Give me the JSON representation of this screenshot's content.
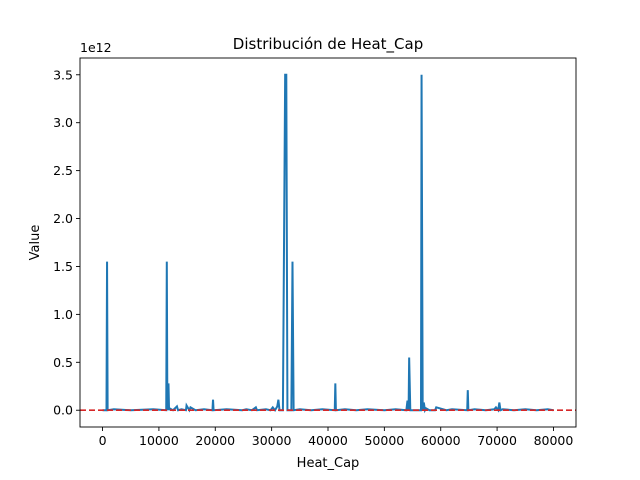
{
  "chart_data": {
    "type": "line",
    "title": "Distribución de Heat_Cap",
    "xlabel": "Heat_Cap",
    "ylabel": "Value",
    "offset_text": "1e12",
    "xlim": [
      -4000,
      84000
    ],
    "ylim": [
      -0.175,
      3.675
    ],
    "y_scale_factor": 1000000000000.0,
    "x_ticks": [
      0,
      10000,
      20000,
      30000,
      40000,
      50000,
      60000,
      70000,
      80000
    ],
    "x_tick_labels": [
      "0",
      "10000",
      "20000",
      "30000",
      "40000",
      "50000",
      "60000",
      "70000",
      "80000"
    ],
    "y_ticks": [
      0.0,
      0.5,
      1.0,
      1.5,
      2.0,
      2.5,
      3.0,
      3.5
    ],
    "y_tick_labels": [
      "0.0",
      "0.5",
      "1.0",
      "1.5",
      "2.0",
      "2.5",
      "3.0",
      "3.5"
    ],
    "grid": false,
    "reference_line": {
      "y": 0,
      "color": "#d62728",
      "style": "dashed"
    },
    "series": [
      {
        "color": "#1f77b4",
        "x": [
          0,
          700,
          800,
          900,
          2000,
          5000,
          9000,
          11300,
          11400,
          11500,
          11700,
          11800,
          11900,
          12500,
          13200,
          13400,
          14000,
          14800,
          14900,
          15400,
          15600,
          16500,
          18000,
          19500,
          19600,
          19700,
          22000,
          24800,
          25500,
          26500,
          27200,
          27400,
          29000,
          29800,
          30200,
          30600,
          31000,
          31200,
          31400,
          32000,
          32400,
          32600,
          32800,
          33500,
          33700,
          33900,
          35000,
          37000,
          39000,
          41200,
          41300,
          41400,
          43000,
          45000,
          47000,
          50000,
          52000,
          53900,
          54100,
          54300,
          54400,
          54600,
          56500,
          56600,
          56800,
          57000,
          57200,
          57400,
          58000,
          59000,
          59200,
          61000,
          62000,
          64700,
          64800,
          64900,
          66000,
          68000,
          69500,
          69800,
          70200,
          70400,
          70600,
          71000,
          73000,
          75000,
          77000,
          79000,
          80000
        ],
        "y": [
          0.0,
          0.0,
          1.55,
          0.0,
          0.01,
          0.0,
          0.01,
          0.0,
          1.55,
          0.0,
          0.28,
          0.0,
          0.02,
          0.0,
          0.04,
          0.0,
          0.01,
          0.0,
          0.05,
          0.0,
          0.03,
          0.0,
          0.01,
          0.0,
          0.11,
          0.0,
          0.01,
          0.0,
          0.01,
          0.0,
          0.03,
          0.0,
          0.01,
          0.0,
          0.03,
          0.0,
          0.04,
          0.11,
          0.0,
          0.0,
          3.5,
          3.5,
          0.0,
          0.0,
          1.55,
          0.0,
          0.01,
          0.0,
          0.01,
          0.0,
          0.28,
          0.0,
          0.01,
          0.0,
          0.01,
          0.0,
          0.01,
          0.0,
          0.1,
          0.0,
          0.55,
          0.0,
          0.0,
          3.5,
          0.0,
          0.08,
          0.0,
          0.02,
          0.0,
          0.0,
          0.03,
          0.0,
          0.01,
          0.0,
          0.21,
          0.0,
          0.01,
          0.0,
          0.01,
          0.03,
          0.0,
          0.08,
          0.0,
          0.01,
          0.0,
          0.01,
          0.0,
          0.01,
          0.0
        ]
      }
    ]
  }
}
